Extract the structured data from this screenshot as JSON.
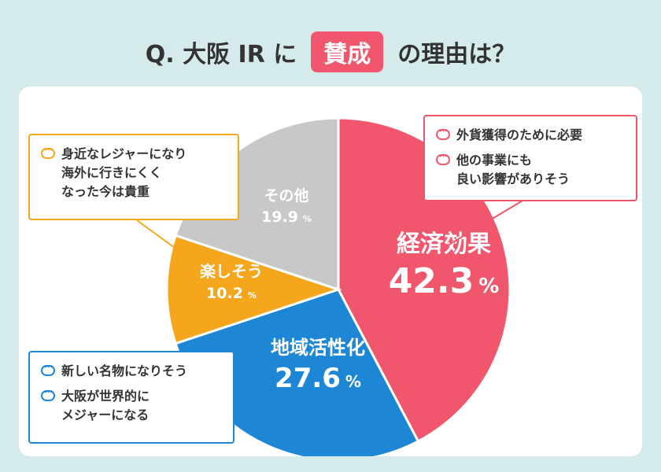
{
  "title": {
    "prefix": "Q. 大阪 IR に",
    "highlight": "賛成",
    "suffix": "の理由は？"
  },
  "colors": {
    "pink": "#f0576c",
    "blue": "#1d87d6",
    "orange": "#f4a71d",
    "gray": "#c8c8c8",
    "background": "#d5ebeb"
  },
  "chart_data": {
    "type": "pie",
    "title": "Q. 大阪 IR に 賛成 の理由は？",
    "slices": [
      {
        "label": "経済効果",
        "value": 42.3,
        "display": "42.3",
        "color": "#f0576c"
      },
      {
        "label": "地域活性化",
        "value": 27.6,
        "display": "27.6",
        "color": "#1d87d6"
      },
      {
        "label": "楽しそう",
        "value": 10.2,
        "display": "10.2",
        "color": "#f4a71d"
      },
      {
        "label": "その他",
        "value": 19.9,
        "display": "19.9",
        "color": "#c8c8c8"
      }
    ],
    "unit": "%",
    "start": "top",
    "direction": "clockwise"
  },
  "callouts": {
    "orange": [
      "身近なレジャーになり\n海外に行きにくく\nなった今は貴重"
    ],
    "pink": [
      "外貨獲得のために必要",
      "他の事業にも\n良い影響がありそう"
    ],
    "blue": [
      "新しい名物になりそう",
      "大阪が世界的に\nメジャーになる"
    ]
  }
}
